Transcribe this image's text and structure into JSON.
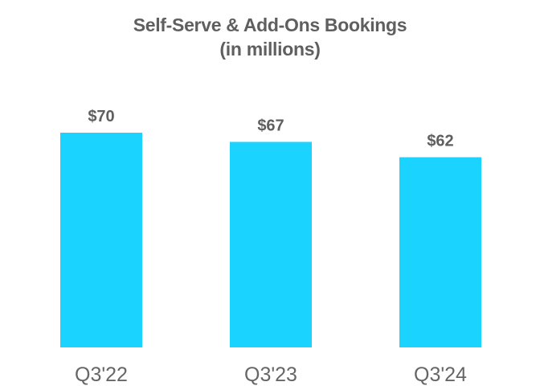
{
  "chart_data": {
    "type": "bar",
    "title": "Self-Serve & Add-Ons Bookings",
    "subtitle": "(in millions)",
    "categories": [
      "Q3'22",
      "Q3'23",
      "Q3'24"
    ],
    "values": [
      70,
      67,
      62
    ],
    "data_labels": [
      "$70",
      "$67",
      "$62"
    ],
    "xlabel": "",
    "ylabel": "",
    "ylim": [
      0,
      70
    ],
    "grid": false,
    "bar_color": "#1ad4ff"
  }
}
